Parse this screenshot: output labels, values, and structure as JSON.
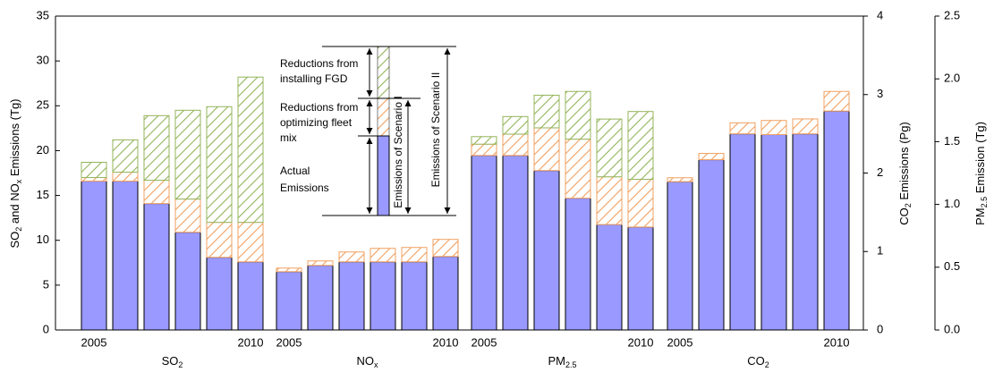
{
  "chart_data": {
    "type": "bar",
    "stacked": true,
    "ylabel": [
      "SO",
      "2",
      " and NO",
      "x",
      " Emissions (Tg)"
    ],
    "y2label": [
      "CO",
      "2",
      " Emissions (Pg)"
    ],
    "y3label": [
      "PM",
      "2.5",
      " Emission (Tg)"
    ],
    "ylim": [
      0,
      35
    ],
    "yticks": [
      0,
      5,
      10,
      15,
      20,
      25,
      30,
      35
    ],
    "y2lim": [
      0,
      4
    ],
    "y2ticks": [
      0,
      1,
      2,
      3,
      4
    ],
    "y3lim": [
      0,
      2.5
    ],
    "y3ticks": [
      {
        "value": 0,
        "label": "0.0"
      },
      0.5,
      {
        "value": 1,
        "label": "1.0"
      },
      1.5,
      {
        "value": 2,
        "label": "2.0"
      },
      2.5
    ],
    "annotations": {
      "fgd": [
        "Reductions from",
        "installing FGD"
      ],
      "fleet": [
        "Reductions from",
        "optimizing fleet",
        "mix"
      ],
      "actual": [
        "Actual",
        "Emissions"
      ],
      "scenario1": "Emissions of Scenario I",
      "scenario2": "Emissions of Scenario II"
    },
    "groups": [
      {
        "name": [
          "SO",
          "2"
        ],
        "axis": "y",
        "categories": [
          "2005",
          null,
          null,
          null,
          null,
          "2010"
        ],
        "series": [
          {
            "name": "Actual Emissions",
            "color": "#9999ff",
            "values": [
              16.6,
              16.6,
              14.1,
              10.9,
              8.1,
              7.6
            ]
          },
          {
            "name": "Reductions from optimizing fleet mix",
            "color": "#f0a060",
            "values": [
              0.4,
              1.0,
              2.6,
              3.7,
              3.9,
              4.4
            ]
          },
          {
            "name": "Reductions from installing FGD",
            "color": "#94b45a",
            "values": [
              1.7,
              3.6,
              7.2,
              9.9,
              12.9,
              16.2
            ]
          }
        ]
      },
      {
        "name": [
          "NO",
          "x"
        ],
        "axis": "y",
        "categories": [
          "2005",
          null,
          null,
          null,
          null,
          "2010"
        ],
        "series": [
          {
            "name": "Actual Emissions",
            "color": "#9999ff",
            "values": [
              6.5,
              7.2,
              7.6,
              7.6,
              7.6,
              8.2
            ]
          },
          {
            "name": "Reductions from optimizing fleet mix",
            "color": "#f0a060",
            "values": [
              0.4,
              0.5,
              1.1,
              1.5,
              1.6,
              1.9
            ]
          }
        ]
      },
      {
        "name": [
          "PM",
          "2.5"
        ],
        "axis": "y3",
        "categories": [
          "2005",
          null,
          null,
          null,
          null,
          "2010"
        ],
        "series": [
          {
            "name": "Actual Emissions",
            "color": "#9999ff",
            "values": [
              1.39,
              1.39,
              1.27,
              1.05,
              0.84,
              0.82
            ]
          },
          {
            "name": "Reductions from optimizing fleet mix",
            "color": "#f0a060",
            "values": [
              0.09,
              0.17,
              0.34,
              0.47,
              0.38,
              0.38
            ]
          },
          {
            "name": "Reductions from installing FGD",
            "color": "#94b45a",
            "values": [
              0.06,
              0.14,
              0.26,
              0.38,
              0.46,
              0.54
            ]
          }
        ]
      },
      {
        "name": [
          "CO",
          "2"
        ],
        "axis": "y2",
        "categories": [
          "2005",
          null,
          null,
          null,
          null,
          "2010"
        ],
        "series": [
          {
            "name": "Actual Emissions",
            "color": "#9999ff",
            "values": [
              1.89,
              2.17,
              2.5,
              2.49,
              2.5,
              2.79
            ]
          },
          {
            "name": "Reductions from optimizing fleet mix",
            "color": "#f0a060",
            "values": [
              0.05,
              0.08,
              0.14,
              0.18,
              0.19,
              0.25
            ]
          }
        ]
      }
    ]
  }
}
